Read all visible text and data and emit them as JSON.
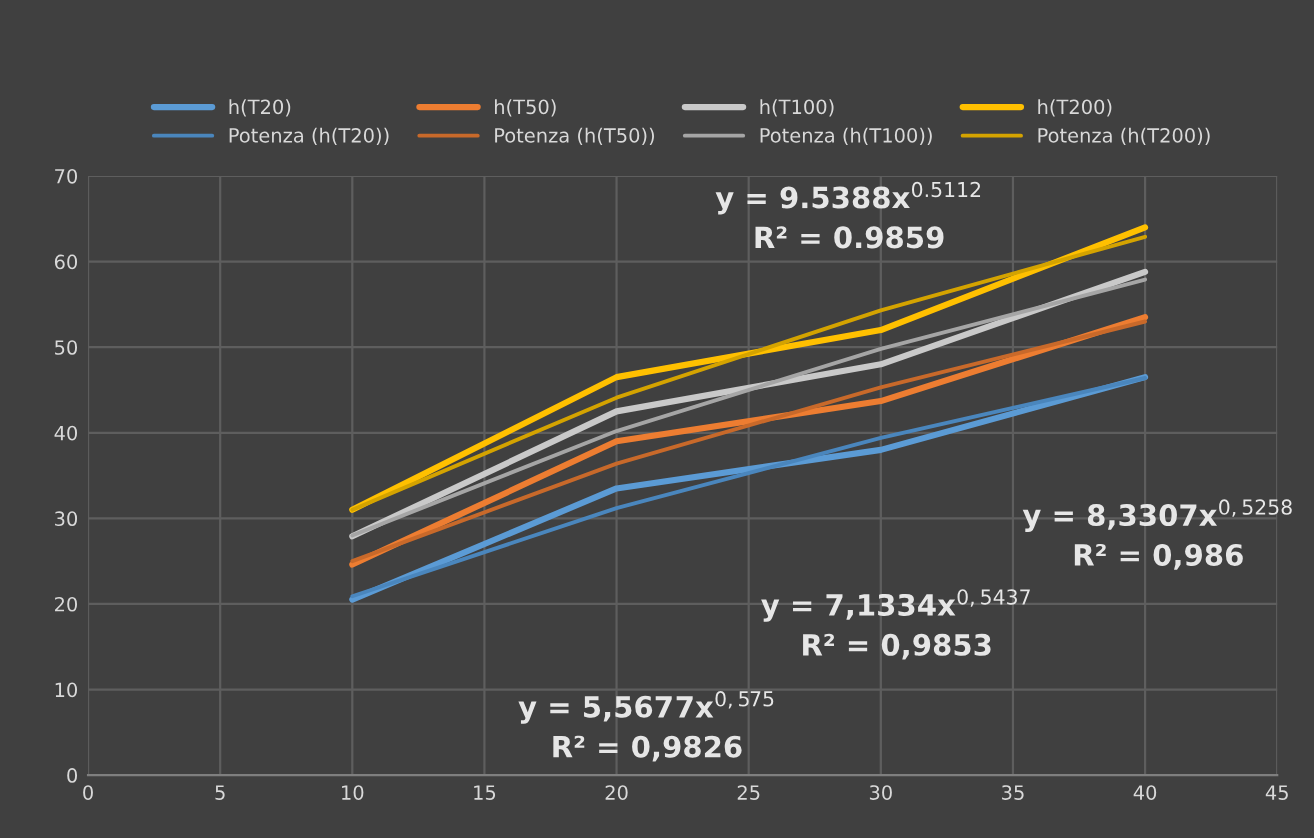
{
  "chart_data": {
    "type": "line",
    "xlim": [
      0,
      45
    ],
    "xticks": [
      0,
      5,
      10,
      15,
      20,
      25,
      30,
      35,
      40,
      45
    ],
    "ylim": [
      0,
      70
    ],
    "yticks": [
      0,
      10,
      20,
      30,
      40,
      50,
      60,
      70
    ],
    "grid": true,
    "legend": "top",
    "marker": "none",
    "line_style": "solid",
    "series": [
      {
        "name": "h(T20)",
        "color": "#5b9bd5",
        "x": [
          10,
          20,
          30,
          40
        ],
        "values": [
          20.5,
          33.5,
          38,
          46.5
        ]
      },
      {
        "name": "h(T50)",
        "color": "#ed7d31",
        "x": [
          10,
          20,
          30,
          40
        ],
        "values": [
          24.6,
          39,
          43.7,
          53.5
        ]
      },
      {
        "name": "h(T100)",
        "color": "#c9c9c9",
        "x": [
          10,
          20,
          30,
          40
        ],
        "values": [
          27.9,
          42.5,
          48,
          58.8
        ]
      },
      {
        "name": "h(T200)",
        "color": "#ffc000",
        "x": [
          10,
          20,
          30,
          40
        ],
        "values": [
          31,
          46.5,
          52,
          64
        ]
      },
      {
        "name": "Potenza (h(T20))",
        "color": "#4a86bd",
        "x": [
          10,
          20,
          30,
          40
        ],
        "values": [
          20.9,
          31.2,
          39.4,
          46.4
        ]
      },
      {
        "name": "Potenza (h(T50))",
        "color": "#c8692a",
        "x": [
          10,
          20,
          30,
          40
        ],
        "values": [
          25,
          36.4,
          45.3,
          53
        ]
      },
      {
        "name": "Potenza (h(T100))",
        "color": "#a5a5a5",
        "x": [
          10,
          20,
          30,
          40
        ],
        "values": [
          28,
          40.2,
          49.8,
          57.9
        ]
      },
      {
        "name": "Potenza (h(T200))",
        "color": "#d4a300",
        "x": [
          10,
          20,
          30,
          40
        ],
        "values": [
          31,
          44.1,
          54.3,
          62.9
        ]
      }
    ],
    "annotations": [
      "y = 9.5388x$^{0.5112}$\nR² = 0.9859",
      "y = 8,3307x$^{0,5258}$\nR² = 0,986",
      "y = 7,1334x$^{0,5437}$\nR² = 0,9853",
      "y = 5,5677x$^{0,575}$\nR² = 0,9826"
    ]
  }
}
